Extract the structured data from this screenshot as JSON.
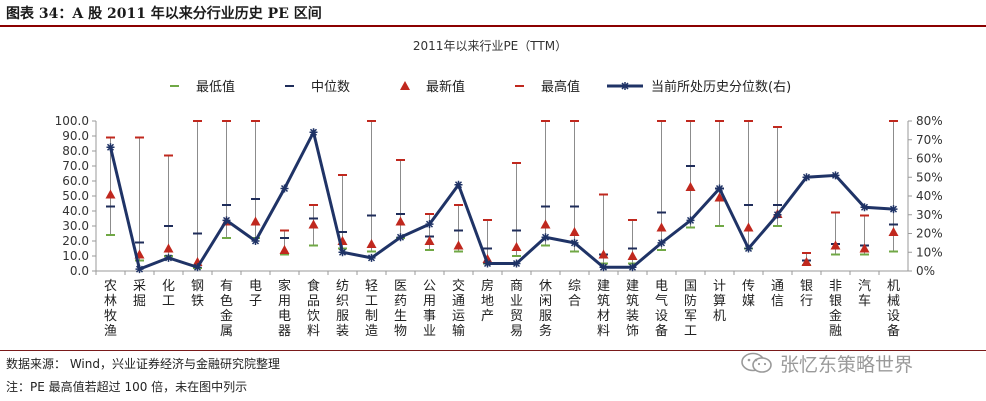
{
  "header": {
    "title": "图表 34：A 股 2011 年以来分行业历史 PE 区间"
  },
  "chart_data": {
    "type": "line",
    "title": "2011年以来行业PE（TTM）",
    "categories": [
      "农林牧渔",
      "采掘",
      "化工",
      "钢铁",
      "有色金属",
      "电子",
      "家用电器",
      "食品饮料",
      "纺织服装",
      "轻工制造",
      "医药生物",
      "公用事业",
      "交通运输",
      "房地产",
      "商业贸易",
      "休闲服务",
      "综合",
      "建筑材料",
      "建筑装饰",
      "电气设备",
      "国防军工",
      "计算机",
      "传媒",
      "通信",
      "银行",
      "非银金融",
      "汽车",
      "机械设备"
    ],
    "ylim": [
      0,
      100
    ],
    "y_ticks": [
      "0.0",
      "10.0",
      "20.0",
      "30.0",
      "40.0",
      "50.0",
      "60.0",
      "70.0",
      "80.0",
      "90.0",
      "100.0"
    ],
    "y2lim": [
      0,
      80
    ],
    "y2_ticks": [
      "0%",
      "10%",
      "20%",
      "30%",
      "40%",
      "50%",
      "60%",
      "70%",
      "80%"
    ],
    "legend_position": "top",
    "series": [
      {
        "name": "最低值",
        "kind": "green-dash",
        "color": "#70a845",
        "values": [
          24,
          7,
          10,
          2,
          22,
          22,
          11,
          17,
          15,
          13,
          22,
          14,
          13,
          5,
          10,
          17,
          13,
          5,
          5,
          14,
          29,
          30,
          15,
          30,
          4,
          11,
          11,
          13
        ]
      },
      {
        "name": "中位数",
        "kind": "navy-dash",
        "color": "#1f2d5a",
        "values": [
          43,
          19,
          30,
          25,
          44,
          48,
          22,
          35,
          26,
          37,
          38,
          23,
          27,
          15,
          27,
          43,
          43,
          11,
          15,
          39,
          70,
          55,
          44,
          44,
          7,
          18,
          17,
          31
        ]
      },
      {
        "name": "最新值",
        "kind": "red-triangle",
        "color": "#c0281e",
        "values": [
          51,
          11,
          15,
          6,
          33,
          33,
          14,
          31,
          20,
          18,
          33,
          20,
          17,
          8,
          16,
          31,
          26,
          11,
          10,
          29,
          56,
          49,
          29,
          38,
          6,
          17,
          15,
          26
        ]
      },
      {
        "name": "最高值",
        "kind": "red-dash",
        "color": "#c0281e",
        "values": [
          89,
          89,
          77,
          100,
          100,
          100,
          27,
          44,
          64,
          100,
          74,
          38,
          44,
          34,
          72,
          100,
          100,
          51,
          34,
          100,
          100,
          100,
          100,
          96,
          12,
          39,
          37,
          100
        ]
      },
      {
        "name": "当前所处历史分位数(右)",
        "kind": "line-star",
        "axis": "right",
        "color": "#1f3366",
        "values": [
          66,
          1,
          7,
          2,
          27,
          16,
          44,
          74,
          10,
          7,
          18,
          25,
          46,
          4,
          4,
          18,
          15,
          2,
          2,
          15,
          27,
          44,
          12,
          30,
          50,
          51,
          34,
          33
        ]
      }
    ]
  },
  "footer": {
    "source": "数据来源： Wind，兴业证券经济与金融研究院整理",
    "note": "注：PE 最高值若超过 100 倍，未在图中列示"
  },
  "watermark": {
    "text": "张忆东策略世界"
  }
}
